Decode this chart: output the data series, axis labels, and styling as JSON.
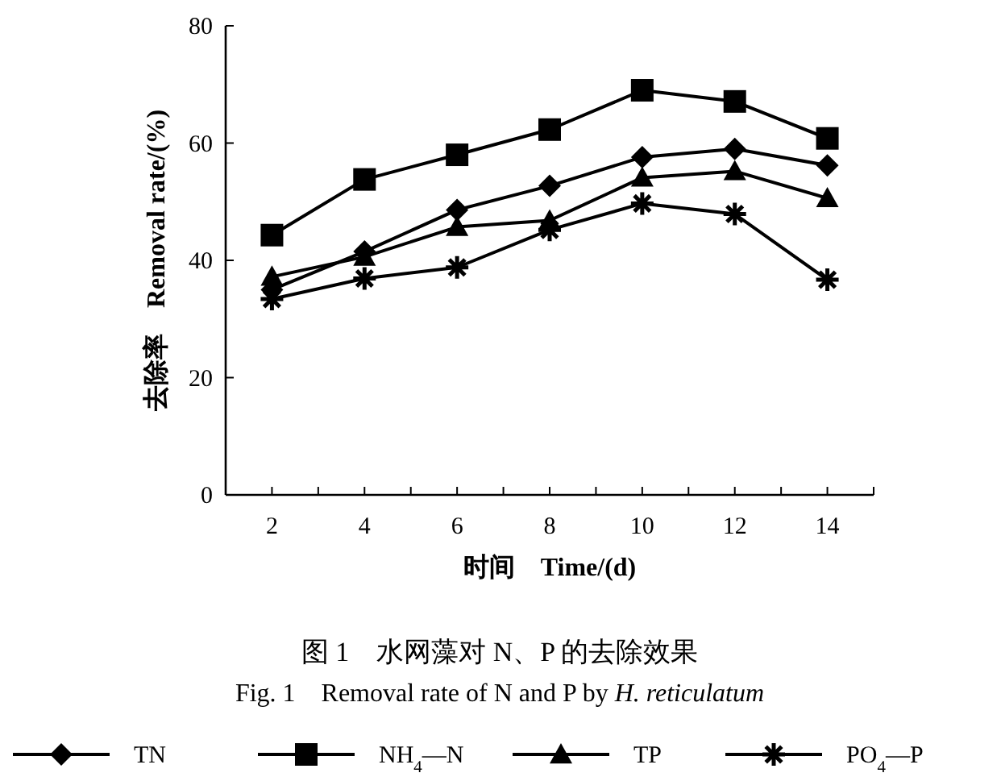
{
  "chart_data": {
    "type": "line",
    "title": "图 1　水网藻对 N、P 的去除效果",
    "subtitle": "Fig. 1　Removal rate of N and P by *H. reticulatum*",
    "xlabel": "时间　Time/(d)",
    "ylabel": "去除率　Removal rate/(%)",
    "x": [
      2,
      4,
      6,
      8,
      10,
      12,
      14
    ],
    "xlim": [
      1,
      15
    ],
    "xticks": [
      {
        "value": 1,
        "label": null
      },
      2,
      {
        "value": 3,
        "label": null
      },
      4,
      {
        "value": 5,
        "label": null
      },
      6,
      {
        "value": 7,
        "label": null
      },
      8,
      {
        "value": 9,
        "label": null
      },
      10,
      {
        "value": 11,
        "label": null
      },
      12,
      {
        "value": 13,
        "label": null
      },
      14,
      {
        "value": 15,
        "label": null
      }
    ],
    "ylim": [
      0,
      80
    ],
    "yticks": [
      0,
      20,
      40,
      60,
      80
    ],
    "series": [
      {
        "name": "TN",
        "color": "#000000",
        "marker": "diamond",
        "values": [
          35,
          41.5,
          48.6,
          52.7,
          57.6,
          59,
          56.2
        ]
      },
      {
        "name": "NH$_{4}$—N",
        "color": "#000000",
        "marker": "square",
        "values": [
          44.3,
          53.8,
          58,
          62.3,
          69,
          67.1,
          60.8
        ]
      },
      {
        "name": "TP",
        "color": "#000000",
        "marker": "triangle",
        "values": [
          37.2,
          40.6,
          45.7,
          46.8,
          54.1,
          55.2,
          50.6
        ]
      },
      {
        "name": "PO$_{4}$—P",
        "color": "#000000",
        "marker": "cross",
        "values": [
          33.4,
          36.9,
          38.8,
          45.2,
          49.7,
          47.9,
          36.7
        ]
      }
    ],
    "legend": "bottom",
    "grid": false,
    "line_style": "solid"
  }
}
